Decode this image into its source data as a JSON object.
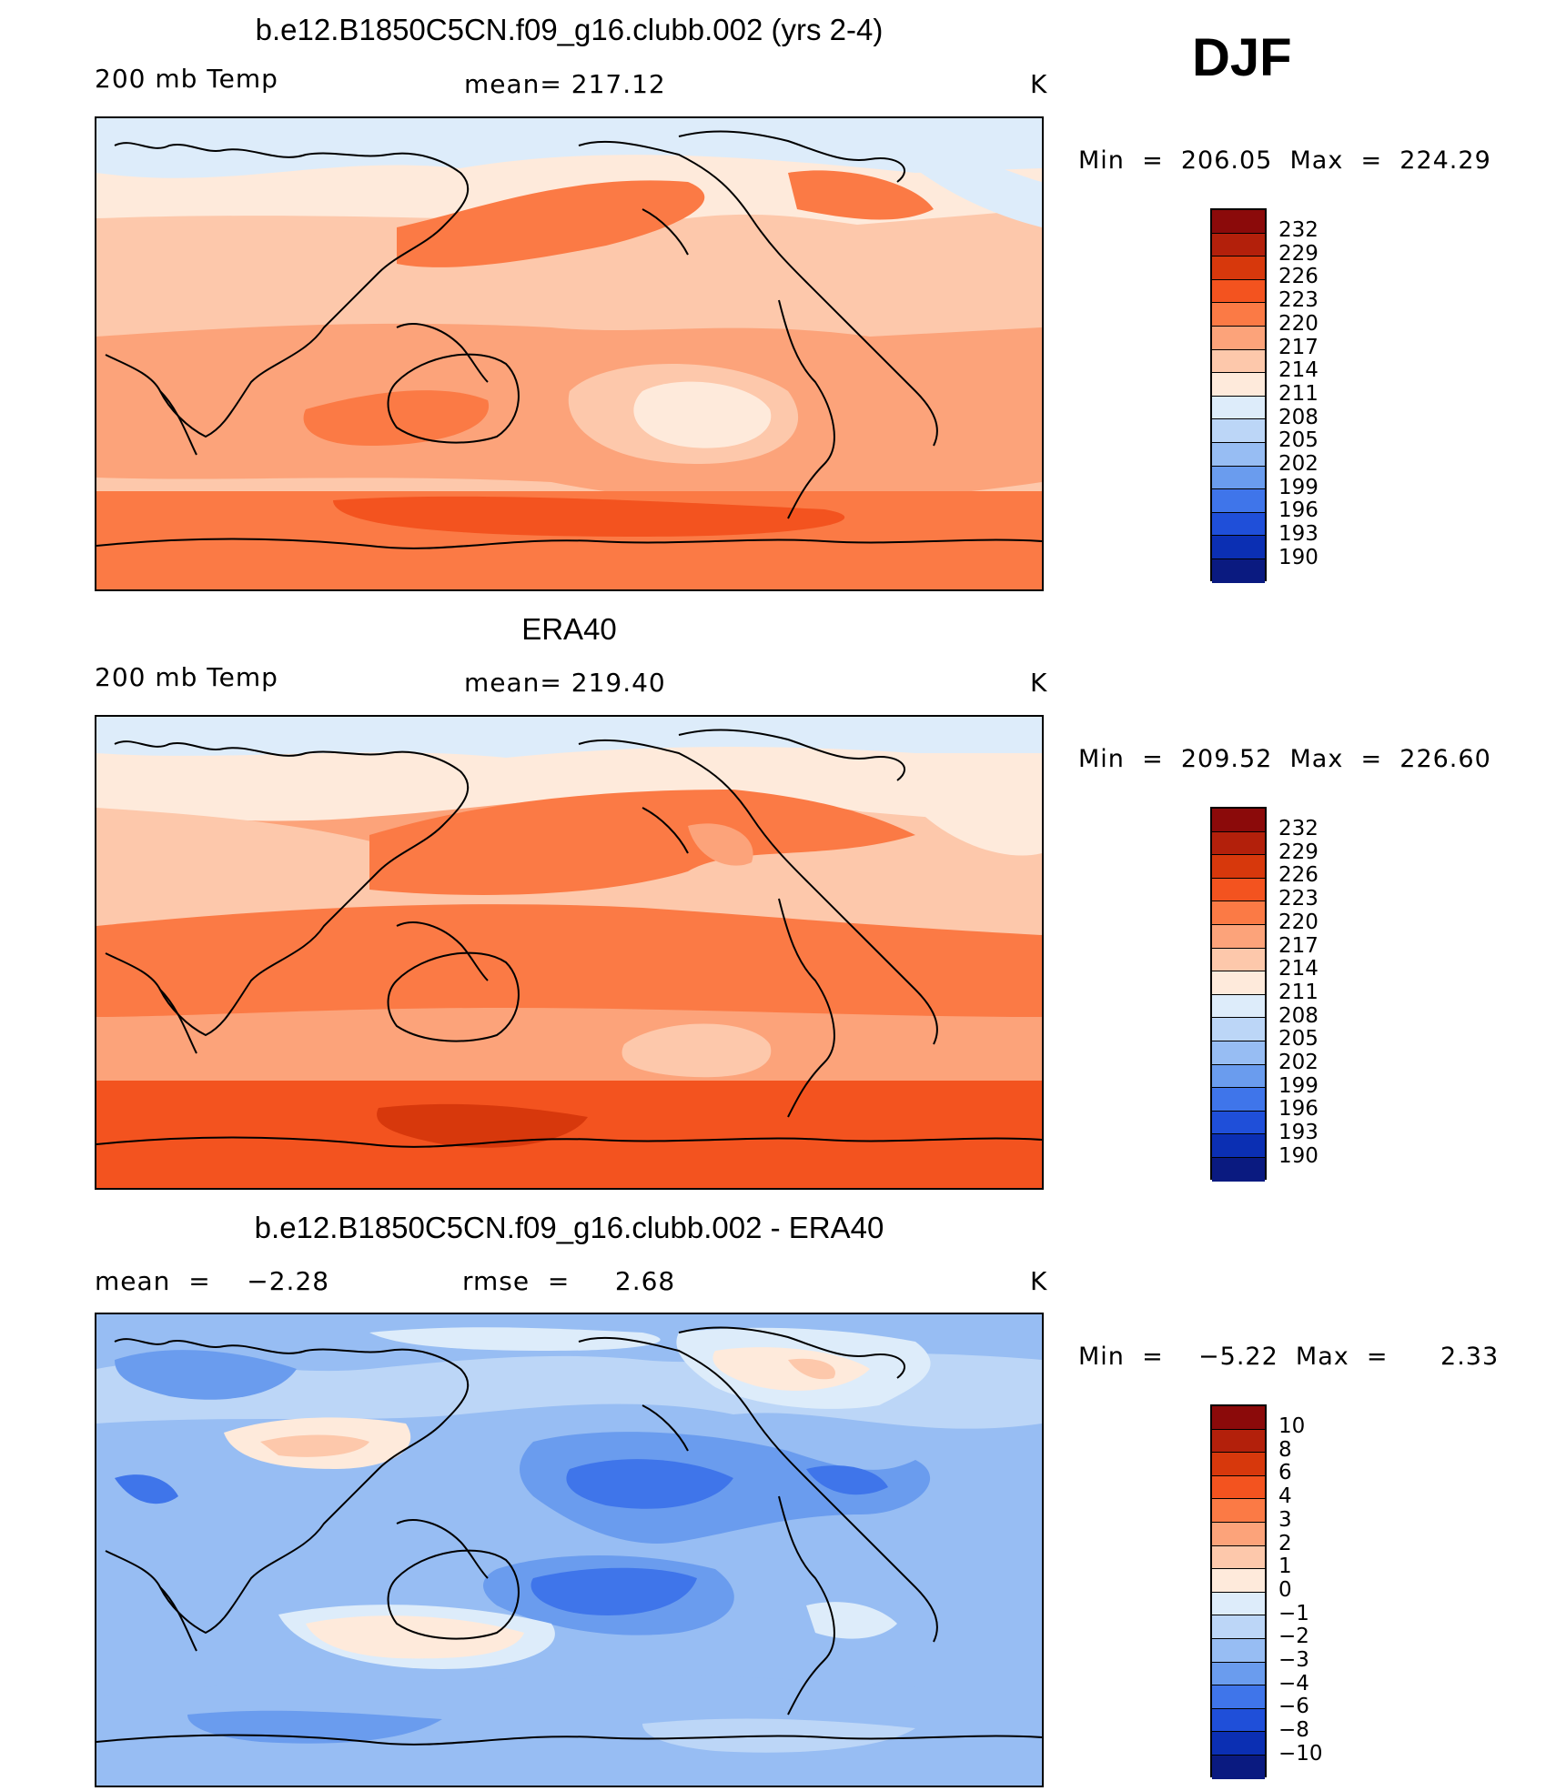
{
  "season": "DJF",
  "units": "K",
  "panels": [
    {
      "title": "b.e12.B1850C5CN.f09_g16.clubb.002 (yrs 2-4)",
      "left_label": "200 mb Temp",
      "center_label": "mean= 217.12",
      "unit": "K",
      "minmax": "Min  =  206.05  Max  =  224.29",
      "colorbar_labels": [
        "232",
        "229",
        "226",
        "223",
        "220",
        "217",
        "214",
        "211",
        "208",
        "205",
        "202",
        "199",
        "196",
        "193",
        "190"
      ]
    },
    {
      "title": "ERA40",
      "left_label": "200 mb Temp",
      "center_label": "mean= 219.40",
      "unit": "K",
      "minmax": "Min  =  209.52  Max  =  226.60",
      "colorbar_labels": [
        "232",
        "229",
        "226",
        "223",
        "220",
        "217",
        "214",
        "211",
        "208",
        "205",
        "202",
        "199",
        "196",
        "193",
        "190"
      ]
    },
    {
      "title": "b.e12.B1850C5CN.f09_g16.clubb.002 - ERA40",
      "left_label": "mean  =    −2.28",
      "center_label": "rmse  =     2.68",
      "unit": "K",
      "minmax": "Min  =    −5.22  Max  =      2.33",
      "colorbar_labels": [
        "10",
        "8",
        "6",
        "4",
        "3",
        "2",
        "1",
        "0",
        "−1",
        "−2",
        "−3",
        "−4",
        "−6",
        "−8",
        "−10"
      ]
    }
  ],
  "colors": {
    "abs_scale": [
      "#8b0a0a",
      "#b3200b",
      "#d7380c",
      "#f3531f",
      "#fb7a45",
      "#fca37a",
      "#fdc8ab",
      "#feeadb",
      "#ddecfa",
      "#bcd6f7",
      "#97bdf3",
      "#6a9cee",
      "#3f75ea",
      "#1f4fd9",
      "#0b2fb3",
      "#0a1a80"
    ],
    "diff_scale": [
      "#8b0a0a",
      "#b3200b",
      "#d7380c",
      "#f3531f",
      "#fb7a45",
      "#fca37a",
      "#fdc8ab",
      "#feeadb",
      "#ddecfa",
      "#bcd6f7",
      "#97bdf3",
      "#6a9cee",
      "#3f75ea",
      "#1f4fd9",
      "#0b2fb3",
      "#0a1a80"
    ]
  }
}
